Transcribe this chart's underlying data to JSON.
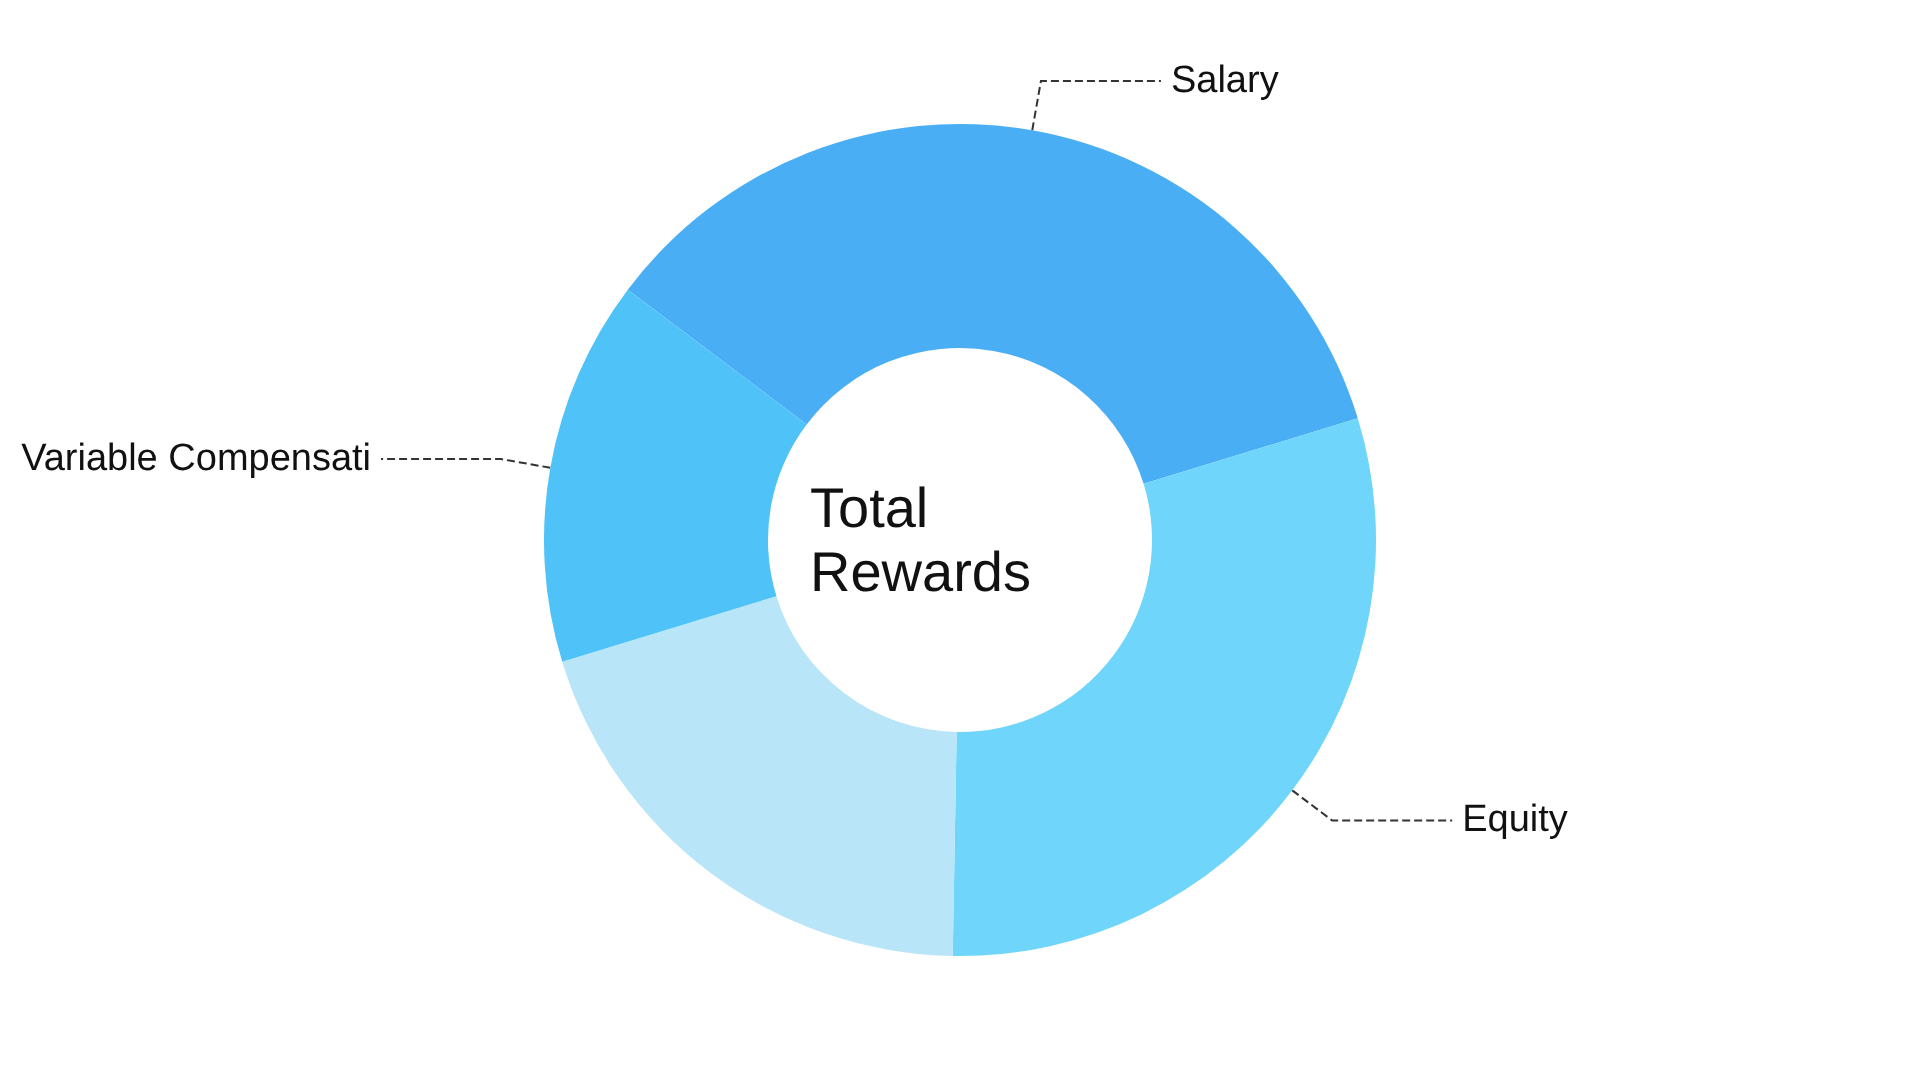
{
  "chart_data": {
    "type": "donut",
    "title": "Total Rewards",
    "categories": [
      "Salary",
      "Equity",
      null,
      "Variable Compensati"
    ],
    "values": [
      35,
      30,
      20,
      15
    ],
    "colors": [
      "#4aaef5",
      "#6fd5fa",
      "#b8e6f8",
      "#4fc3f7"
    ]
  }
}
